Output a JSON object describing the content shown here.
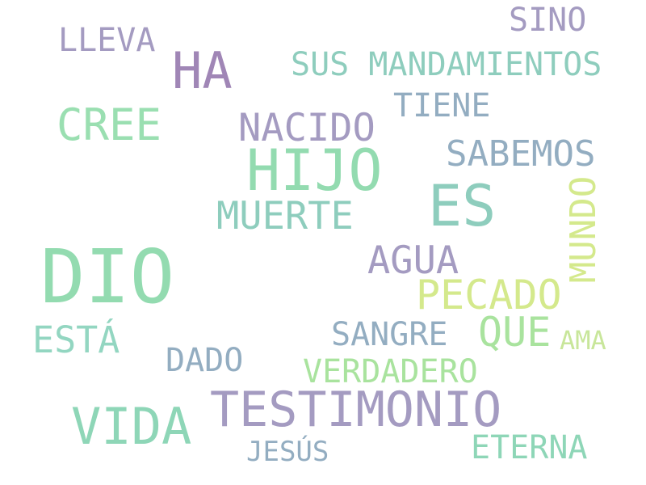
{
  "words": {
    "dio": {
      "text": "DIO",
      "color": "#93dbb0"
    },
    "hijo": {
      "text": "HIJO",
      "color": "#93dbb0"
    },
    "es": {
      "text": "ES",
      "color": "#8ecdbd"
    },
    "testimonio": {
      "text": "TESTIMONIO",
      "color": "#a49bc1"
    },
    "ha": {
      "text": "HA",
      "color": "#a086b6"
    },
    "vida": {
      "text": "VIDA",
      "color": "#8ed6b7"
    },
    "cree": {
      "text": "CREE",
      "color": "#9adfb1"
    },
    "pecado": {
      "text": "PECADO",
      "color": "#d4e98c"
    },
    "que": {
      "text": "QUE",
      "color": "#a9e39e"
    },
    "nacido": {
      "text": "NACIDO",
      "color": "#a49bc1"
    },
    "sabemos": {
      "text": "SABEMOS",
      "color": "#93adc1"
    },
    "muerte": {
      "text": "MUERTE",
      "color": "#8ecdbd"
    },
    "agua": {
      "text": "AGUA",
      "color": "#a49bc1"
    },
    "mundo": {
      "text": "MUNDO",
      "color": "#d4e98c"
    },
    "sus_mandamientos": {
      "text": "SUS MANDAMIENTOS",
      "color": "#8ecdbd"
    },
    "esta": {
      "text": "ESTÁ",
      "color": "#93d6c1"
    },
    "lleva": {
      "text": "LLEVA",
      "color": "#a49bc1"
    },
    "sino": {
      "text": "SINO",
      "color": "#a49bc1"
    },
    "tiene": {
      "text": "TIENE",
      "color": "#93adc1"
    },
    "sangre": {
      "text": "SANGRE",
      "color": "#93adc1"
    },
    "dado": {
      "text": "DADO",
      "color": "#93adc1"
    },
    "verdadero": {
      "text": "VERDADERO",
      "color": "#a9e39e"
    },
    "eterna": {
      "text": "ETERNA",
      "color": "#8ed6b7"
    },
    "jesus": {
      "text": "JESÚS",
      "color": "#93adc1"
    },
    "ama": {
      "text": "AMA",
      "color": "#c8e69a"
    }
  }
}
